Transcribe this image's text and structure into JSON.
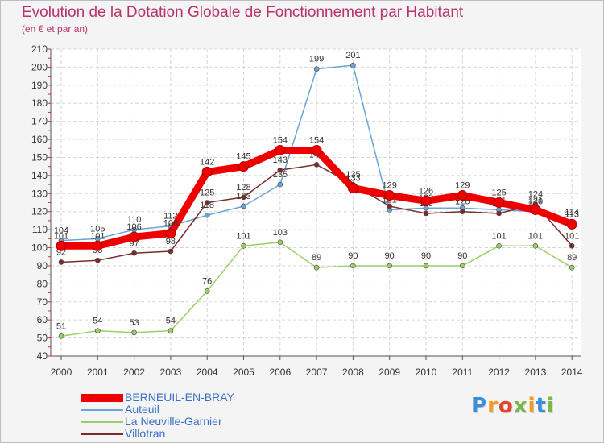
{
  "header": {
    "title": "Evolution de la Dotation Globale de Fonctionnement par Habitant",
    "subtitle": "(en € et par an)"
  },
  "logo": {
    "text": "Proxiti",
    "letters": [
      "P",
      "r",
      "o",
      "x",
      "i",
      "t",
      "i"
    ],
    "colors": [
      "#3a8fd6",
      "#f39a1e",
      "#e2462b",
      "#7ab648",
      "#f39a1e",
      "#3a8fd6",
      "#7ab648"
    ]
  },
  "chart_data": {
    "type": "line",
    "title": "Evolution de la Dotation Globale de Fonctionnement par Habitant",
    "subtitle": "(en € et par an)",
    "x": [
      "2000",
      "2001",
      "2002",
      "2003",
      "2004",
      "2005",
      "2006",
      "2007",
      "2008",
      "2009",
      "2010",
      "2011",
      "2012",
      "2013",
      "2014"
    ],
    "ylim": [
      40,
      210
    ],
    "yticks": [
      40,
      50,
      60,
      70,
      80,
      90,
      100,
      110,
      120,
      130,
      140,
      150,
      160,
      170,
      180,
      190,
      200,
      210
    ],
    "grid": true,
    "legend_position": "bottom-left",
    "series": [
      {
        "name": "BERNEUIL-EN-BRAY",
        "color": "#ee0000",
        "emphasis": true,
        "values": [
          101,
          101,
          106,
          108,
          142,
          145,
          154,
          154,
          133,
          129,
          126,
          129,
          125,
          121,
          113
        ]
      },
      {
        "name": "Auteuil",
        "color": "#6aa5d8",
        "emphasis": false,
        "values": [
          104,
          105,
          110,
          112,
          118,
          123,
          135,
          199,
          201,
          121,
          122,
          122,
          121,
          120,
          114
        ]
      },
      {
        "name": "La Neuville-Garnier",
        "color": "#99d066",
        "emphasis": false,
        "values": [
          51,
          54,
          53,
          54,
          76,
          101,
          103,
          89,
          90,
          90,
          90,
          90,
          101,
          101,
          89
        ]
      },
      {
        "name": "Villotran",
        "color": "#7a2c2c",
        "emphasis": false,
        "values": [
          92,
          93,
          97,
          98,
          125,
          128,
          143,
          146,
          135,
          123,
          119,
          120,
          119,
          124,
          101
        ]
      }
    ]
  }
}
